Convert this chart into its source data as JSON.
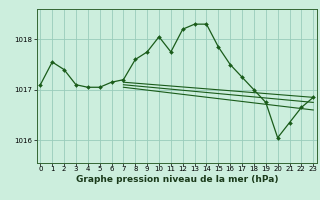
{
  "background_color": "#cceedd",
  "grid_color": "#99ccbb",
  "line_color": "#1a5c1a",
  "series_main": {
    "x": [
      0,
      1,
      2,
      3,
      4,
      5,
      6,
      7,
      8,
      9,
      10,
      11,
      12,
      13,
      14,
      15,
      16,
      17,
      18,
      19,
      20,
      21,
      22,
      23
    ],
    "y": [
      1017.1,
      1017.55,
      1017.4,
      1017.1,
      1017.05,
      1017.05,
      1017.15,
      1017.2,
      1017.6,
      1017.75,
      1018.05,
      1017.75,
      1018.2,
      1018.3,
      1018.3,
      1017.85,
      1017.5,
      1017.25,
      1017.0,
      1016.75,
      1016.05,
      1016.35,
      1016.65,
      1016.85
    ]
  },
  "trend_lines": [
    {
      "x": [
        7,
        23
      ],
      "y": [
        1017.15,
        1016.85
      ]
    },
    {
      "x": [
        7,
        23
      ],
      "y": [
        1017.1,
        1016.75
      ]
    },
    {
      "x": [
        7,
        23
      ],
      "y": [
        1017.05,
        1016.6
      ]
    }
  ],
  "yticks": [
    1016,
    1017,
    1018
  ],
  "xticks": [
    0,
    1,
    2,
    3,
    4,
    5,
    6,
    7,
    8,
    9,
    10,
    11,
    12,
    13,
    14,
    15,
    16,
    17,
    18,
    19,
    20,
    21,
    22,
    23
  ],
  "xlim": [
    -0.3,
    23.3
  ],
  "ylim": [
    1015.55,
    1018.6
  ],
  "xlabel": "Graphe pression niveau de la mer (hPa)",
  "xlabel_fontsize": 6.5,
  "tick_fontsize": 5.0
}
